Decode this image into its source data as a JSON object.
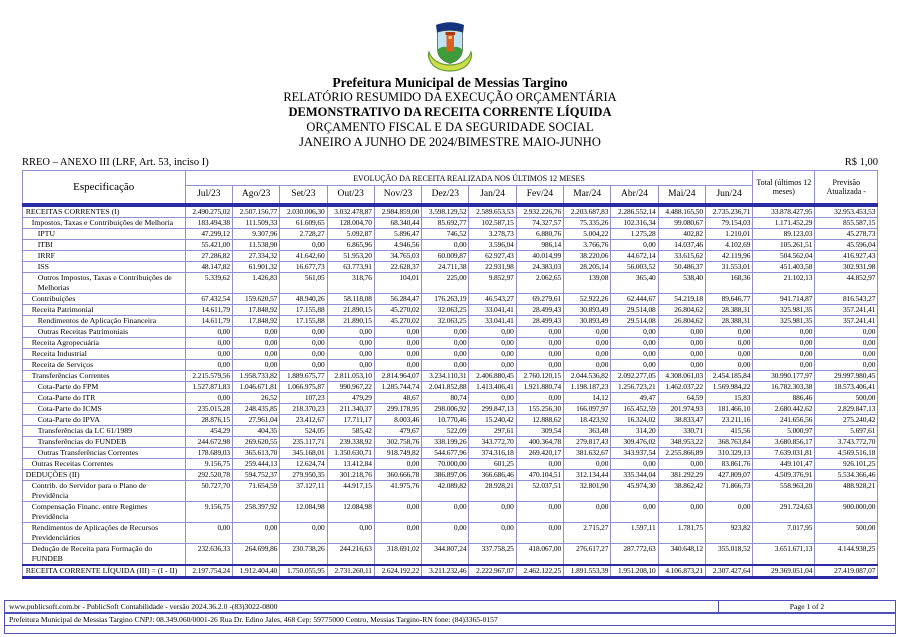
{
  "header": {
    "org": "Prefeitura Municipal de Messias Targino",
    "line1": "RELATÓRIO RESUMIDO DA EXECUÇÃO ORÇAMENTÁRIA",
    "line2": "DEMONSTRATIVO DA RECEITA CORRENTE LÍQUIDA",
    "line3": "ORÇAMENTO FISCAL E DA SEGURIDADE SOCIAL",
    "line4": "JANEIRO A JUNHO DE 2024/BIMESTRE MAIO-JUNHO"
  },
  "meta": {
    "annex": "RREO – ANEXO III (LRF, Art. 53, inciso I)",
    "currency": "R$ 1,00"
  },
  "table": {
    "col_spec": "Especificação",
    "evolution_header": "EVOLUÇÃO DA RECEITA REALIZADA NOS ÚLTIMOS 12 MESES",
    "months": [
      "Jul/23",
      "Ago/23",
      "Set/23",
      "Out/23",
      "Nov/23",
      "Dez/23",
      "Jan/24",
      "Fev/24",
      "Mar/24",
      "Abr/24",
      "Mai/24",
      "Jun/24"
    ],
    "total_header": "Total (últimos 12 meses)",
    "forecast_header": "Previsão Atualizada -",
    "rows": [
      {
        "label": "RECEITAS CORRENTES (I)",
        "indent": 0,
        "style": "first",
        "values": [
          "2.490.275,02",
          "2.507.156,77",
          "2.030.006,30",
          "3.032.478,87",
          "2.984.859,00",
          "3.598.129,52",
          "2.589.653,53",
          "2.932.226,76",
          "2.203.687,83",
          "2.286.552,14",
          "4.488.165,50",
          "2.735.236,71",
          "33.878.427,95",
          "32.953.453,53"
        ]
      },
      {
        "label": "Impostos, Taxas e Contribuições de Melhoria",
        "indent": 1,
        "style": "normal",
        "values": [
          "183.494,38",
          "111.509,33",
          "61.609,65",
          "128.004,70",
          "68.340,44",
          "85.692,77",
          "102.587,15",
          "74.327,57",
          "75.335,26",
          "102.316,34",
          "99.080,67",
          "79.154,03",
          "1.171.452,29",
          "855.587,15"
        ]
      },
      {
        "label": "IPTU",
        "indent": 2,
        "style": "normal",
        "values": [
          "47.299,12",
          "9.307,96",
          "2.728,27",
          "5.092,87",
          "5.896,47",
          "746,52",
          "3.278,73",
          "6.880,76",
          "5.004,22",
          "1.275,28",
          "402,82",
          "1.210,01",
          "89.123,03",
          "45.278,73"
        ]
      },
      {
        "label": "ITBI",
        "indent": 2,
        "style": "normal",
        "values": [
          "55.421,00",
          "11.538,90",
          "0,00",
          "6.865,96",
          "4.946,56",
          "0,00",
          "3.596,04",
          "986,14",
          "3.766,76",
          "0,00",
          "14.037,46",
          "4.102,69",
          "105.261,51",
          "45.596,04"
        ]
      },
      {
        "label": "IRRF",
        "indent": 2,
        "style": "normal",
        "values": [
          "27.286,82",
          "27.334,32",
          "41.642,60",
          "51.953,20",
          "34.765,03",
          "60.009,87",
          "62.927,43",
          "40.014,99",
          "38.220,06",
          "44.672,14",
          "33.615,62",
          "42.119,96",
          "504.562,04",
          "416.927,43"
        ]
      },
      {
        "label": "ISS",
        "indent": 2,
        "style": "normal",
        "values": [
          "48.147,82",
          "61.901,32",
          "16.677,73",
          "63.773,91",
          "22.628,37",
          "24.711,38",
          "22.931,98",
          "24.383,03",
          "28.205,14",
          "56.003,52",
          "50.486,37",
          "31.553,01",
          "451.403,58",
          "302.931,98"
        ]
      },
      {
        "label": "Outros Impostos, Taxas e Contribuições de Melhorias",
        "indent": 2,
        "style": "normal",
        "values": [
          "5.339,62",
          "1.426,83",
          "561,05",
          "318,76",
          "104,01",
          "225,00",
          "9.852,97",
          "2.062,65",
          "139,08",
          "365,40",
          "538,40",
          "168,36",
          "21.102,13",
          "44.852,97"
        ]
      },
      {
        "label": "Contribuições",
        "indent": 1,
        "style": "normal",
        "values": [
          "67.432,54",
          "159.620,57",
          "48.940,26",
          "58.118,08",
          "56.284,47",
          "176.263,19",
          "46.543,27",
          "69.279,61",
          "52.922,26",
          "62.444,67",
          "54.219,18",
          "89.646,77",
          "941.714,87",
          "816.543,27"
        ]
      },
      {
        "label": "Receita Patrimonial",
        "indent": 1,
        "style": "normal",
        "values": [
          "14.611,79",
          "17.848,92",
          "17.155,88",
          "21.890,15",
          "45.270,02",
          "32.063,25",
          "33.041,41",
          "28.499,43",
          "30.893,49",
          "29.514,08",
          "26.804,62",
          "28.388,31",
          "325.981,35",
          "357.241,41"
        ]
      },
      {
        "label": "Rendimentos de Aplicação Financeira",
        "indent": 2,
        "style": "normal",
        "values": [
          "14.611,79",
          "17.848,92",
          "17.155,88",
          "21.890,15",
          "45.270,02",
          "32.063,25",
          "33.041,41",
          "28.499,43",
          "30.893,49",
          "29.514,08",
          "26.804,62",
          "28.388,31",
          "325.981,35",
          "357.241,41"
        ]
      },
      {
        "label": "Outras Receitas Patrimoniais",
        "indent": 2,
        "style": "normal",
        "values": [
          "0,00",
          "0,00",
          "0,00",
          "0,00",
          "0,00",
          "0,00",
          "0,00",
          "0,00",
          "0,00",
          "0,00",
          "0,00",
          "0,00",
          "0,00",
          "0,00"
        ]
      },
      {
        "label": "Receita Agropecuária",
        "indent": 1,
        "style": "normal",
        "values": [
          "0,00",
          "0,00",
          "0,00",
          "0,00",
          "0,00",
          "0,00",
          "0,00",
          "0,00",
          "0,00",
          "0,00",
          "0,00",
          "0,00",
          "0,00",
          "0,00"
        ]
      },
      {
        "label": "Receita Industrial",
        "indent": 1,
        "style": "normal",
        "values": [
          "0,00",
          "0,00",
          "0,00",
          "0,00",
          "0,00",
          "0,00",
          "0,00",
          "0,00",
          "0,00",
          "0,00",
          "0,00",
          "0,00",
          "0,00",
          "0,00"
        ]
      },
      {
        "label": "Receita de Serviços",
        "indent": 1,
        "style": "normal",
        "values": [
          "0,00",
          "0,00",
          "0,00",
          "0,00",
          "0,00",
          "0,00",
          "0,00",
          "0,00",
          "0,00",
          "0,00",
          "0,00",
          "0,00",
          "0,00",
          "0,00"
        ]
      },
      {
        "label": "Transferências Correntes",
        "indent": 1,
        "style": "normal",
        "values": [
          "2.215.579,56",
          "1.958.733,82",
          "1.889.675,77",
          "2.811.053,10",
          "2.814.964,07",
          "3.234.110,31",
          "2.406.880,45",
          "2.760.120,15",
          "2.044.536,82",
          "2.092.277,05",
          "4.308.061,03",
          "2.454.185,84",
          "30.990.177,97",
          "29.997.980,45"
        ]
      },
      {
        "label": "Cota-Parte do FPM",
        "indent": 2,
        "style": "normal",
        "values": [
          "1.527.871,83",
          "1.046.671,81",
          "1.066.975,87",
          "990.967,22",
          "1.285.744,74",
          "2.041.852,88",
          "1.413.406,41",
          "1.921.880,74",
          "1.198.187,23",
          "1.256.723,21",
          "1.462.037,22",
          "1.569.984,22",
          "16.782.303,38",
          "18.573.406,41"
        ]
      },
      {
        "label": "Cota-Parte do ITR",
        "indent": 2,
        "style": "normal",
        "values": [
          "0,00",
          "26,52",
          "107,23",
          "479,29",
          "48,67",
          "80,74",
          "0,00",
          "0,00",
          "14,12",
          "49,47",
          "64,59",
          "15,83",
          "886,46",
          "500,00"
        ]
      },
      {
        "label": "Cota-Parte do ICMS",
        "indent": 2,
        "style": "normal",
        "values": [
          "235.015,28",
          "248.435,85",
          "218.370,23",
          "211.340,37",
          "299.178,95",
          "298.006,92",
          "299.847,13",
          "155.256,30",
          "166.097,97",
          "165.452,59",
          "201.974,93",
          "181.466,10",
          "2.680.442,62",
          "2.829.847,13"
        ]
      },
      {
        "label": "Cota-Parte do IPVA",
        "indent": 2,
        "style": "normal",
        "values": [
          "28.876,15",
          "27.961,04",
          "23.412,67",
          "17.711,17",
          "8.003,46",
          "10.770,46",
          "15.240,42",
          "12.888,62",
          "18.423,92",
          "16.324,02",
          "38.833,47",
          "23.211,16",
          "241.656,56",
          "275.240,42"
        ]
      },
      {
        "label": "Transferências da LC 61/1989",
        "indent": 2,
        "style": "normal",
        "values": [
          "454,29",
          "404,35",
          "524,05",
          "585,42",
          "479,67",
          "522,09",
          "297,61",
          "309,54",
          "363,48",
          "314,20",
          "330,71",
          "415,56",
          "5.000,97",
          "5.697,61"
        ]
      },
      {
        "label": "Transferências do FUNDEB",
        "indent": 2,
        "style": "normal",
        "values": [
          "244.672,98",
          "269.620,55",
          "235.117,71",
          "239.338,92",
          "302.758,76",
          "338.199,26",
          "343.772,70",
          "400.364,78",
          "279.817,43",
          "309.476,02",
          "348.953,22",
          "368.763,84",
          "3.680.856,17",
          "3.743.772,70"
        ]
      },
      {
        "label": "Outras Transferências Correntes",
        "indent": 2,
        "style": "normal",
        "values": [
          "178.689,03",
          "365.613,70",
          "345.168,01",
          "1.350.630,71",
          "918.749,82",
          "544.677,96",
          "374.316,18",
          "269.420,17",
          "381.632,67",
          "343.937,54",
          "2.255.866,89",
          "310.329,13",
          "7.639.031,81",
          "4.569.516,18"
        ]
      },
      {
        "label": "Outras Receitas Correntes",
        "indent": 1,
        "style": "normal",
        "values": [
          "9.156,75",
          "259.444,13",
          "12.624,74",
          "13.412,84",
          "0,00",
          "70.000,00",
          "601,25",
          "0,00",
          "0,00",
          "0,00",
          "0,00",
          "83.861,76",
          "449.101,47",
          "926.101,25"
        ]
      },
      {
        "label": "DEDUÇÕES (II)",
        "indent": 0,
        "style": "normal",
        "values": [
          "292.520,78",
          "594.752,37",
          "279.950,35",
          "301.218,76",
          "360.666,78",
          "386.897,06",
          "366.686,46",
          "470.104,51",
          "312.134,44",
          "335.344,04",
          "381.292,29",
          "427.809,07",
          "4.509.376,91",
          "5.534.366,46"
        ]
      },
      {
        "label": "Contrib. do Servidor para o Plano de Previdência",
        "indent": 1,
        "style": "normal",
        "values": [
          "50.727,70",
          "71.654,59",
          "37.127,11",
          "44.917,15",
          "41.975,76",
          "42.089,82",
          "28.928,21",
          "52.037,51",
          "32.801,90",
          "45.974,30",
          "38.862,42",
          "71.866,73",
          "558.963,20",
          "488.928,21"
        ]
      },
      {
        "label": "Compensação Financ. entre Regimes Previdência",
        "indent": 1,
        "style": "normal",
        "values": [
          "9.156,75",
          "258.397,92",
          "12.084,98",
          "12.084,98",
          "0,00",
          "0,00",
          "0,00",
          "0,00",
          "0,00",
          "0,00",
          "0,00",
          "0,00",
          "291.724,63",
          "900.000,00"
        ]
      },
      {
        "label": "Rendimentos de Aplicações de Recursos Previdenciários",
        "indent": 1,
        "style": "normal",
        "values": [
          "0,00",
          "0,00",
          "0,00",
          "0,00",
          "0,00",
          "0,00",
          "0,00",
          "0,00",
          "2.715,27",
          "1.597,11",
          "1.781,75",
          "923,82",
          "7.017,95",
          "500,00"
        ]
      },
      {
        "label": "Dedução de Receita para Formação do FUNDEB",
        "indent": 1,
        "style": "normal",
        "values": [
          "232.636,33",
          "264.699,86",
          "230.738,26",
          "244.216,63",
          "318.691,02",
          "344.807,24",
          "337.758,25",
          "418.067,00",
          "276.617,27",
          "287.772,63",
          "340.648,12",
          "355.018,52",
          "3.651.671,13",
          "4.144.938,25"
        ]
      },
      {
        "label": "RECEITA CORRENTE LÍQUIDA (III) = (I - II)",
        "indent": 0,
        "style": "final",
        "values": [
          "2.197.754,24",
          "1.912.404,40",
          "1.750.055,95",
          "2.731.260,11",
          "2.624.192,22",
          "3.211.232,46",
          "2.222.967,07",
          "2.462.122,25",
          "1.891.553,39",
          "1.951.208,10",
          "4.106.873,21",
          "2.307.427,64",
          "29.369.051,04",
          "27.419.087,07"
        ]
      }
    ]
  },
  "footer": {
    "software_line": "www.publicsoft.com.br - PublicSoft Contabilidade - versão 2024.36.2.0 -(83)3022-0800",
    "page_label": "Page 1 of 2",
    "entity_line": "Prefeitura Municipal de Messias Targino CNPJ: 08.349.060/0001-26 Rua Dr. Edino Jales, 468 Cep: 59775000 Centro, Messias Targino-RN fone: (84)3365-0157"
  },
  "colors": {
    "grid_border": "#8f8fd2",
    "heavy_band": "#2b2ba6",
    "footer_border": "#5050bb"
  }
}
